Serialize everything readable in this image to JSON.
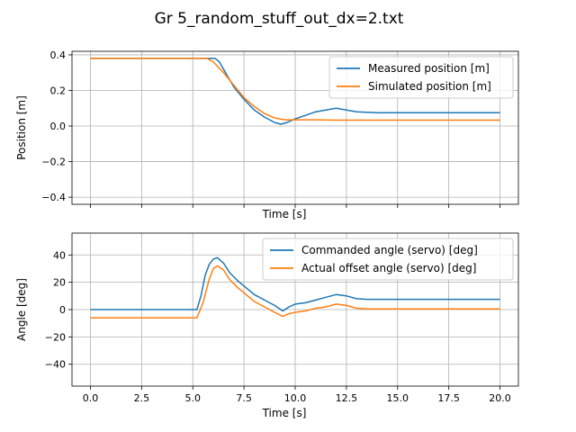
{
  "figure": {
    "title": "Gr 5_random_stuff_out_dx=2.txt"
  },
  "chart_data": [
    {
      "type": "line",
      "title": "",
      "xlabel": "Time [s]",
      "ylabel": "Position [m]",
      "xlim": [
        -0.9,
        20.9
      ],
      "ylim": [
        -0.44,
        0.42
      ],
      "xticks": [
        0,
        2.5,
        5,
        7.5,
        10,
        12.5,
        15,
        17.5,
        20
      ],
      "xtick_labels_visible": false,
      "yticks": [
        -0.4,
        -0.2,
        0.0,
        0.2,
        0.4
      ],
      "ytick_labels": [
        "−0.4",
        "−0.2",
        "0.0",
        "0.2",
        "0.4"
      ],
      "grid": true,
      "legend": "top-right",
      "series": [
        {
          "name": "Measured position [m]",
          "color": "#1f77b4",
          "x": [
            0,
            5.5,
            5.9,
            6.1,
            6.3,
            6.6,
            7.0,
            7.5,
            8.0,
            8.5,
            9.0,
            9.3,
            9.6,
            10.0,
            10.5,
            11.0,
            11.5,
            12.0,
            12.5,
            13.0,
            14.0,
            15.0,
            20.0
          ],
          "y": [
            0.38,
            0.38,
            0.38,
            0.38,
            0.36,
            0.3,
            0.22,
            0.15,
            0.09,
            0.05,
            0.02,
            0.01,
            0.02,
            0.04,
            0.06,
            0.08,
            0.09,
            0.1,
            0.09,
            0.08,
            0.075,
            0.075,
            0.075
          ]
        },
        {
          "name": "Simulated position [m]",
          "color": "#ff7f0e",
          "x": [
            0,
            5.7,
            6.0,
            6.5,
            7.0,
            7.5,
            8.0,
            8.5,
            9.0,
            9.5,
            10.0,
            11.0,
            12.0,
            20.0
          ],
          "y": [
            0.38,
            0.38,
            0.36,
            0.3,
            0.23,
            0.16,
            0.11,
            0.07,
            0.045,
            0.035,
            0.035,
            0.035,
            0.033,
            0.033
          ]
        }
      ]
    },
    {
      "type": "line",
      "title": "",
      "xlabel": "Time [s]",
      "ylabel": "Angle [deg]",
      "xlim": [
        -0.9,
        20.9
      ],
      "ylim": [
        -56,
        56
      ],
      "xticks": [
        0,
        2.5,
        5,
        7.5,
        10,
        12.5,
        15,
        17.5,
        20
      ],
      "xtick_labels": [
        "0.0",
        "2.5",
        "5.0",
        "7.5",
        "10.0",
        "12.5",
        "15.0",
        "17.5",
        "20.0"
      ],
      "yticks": [
        -40,
        -20,
        0,
        20,
        40
      ],
      "ytick_labels": [
        "−40",
        "−20",
        "0",
        "20",
        "40"
      ],
      "grid": true,
      "legend": "top-right",
      "series": [
        {
          "name": "Commanded angle (servo) [deg]",
          "color": "#1f77b4",
          "x": [
            0,
            5.2,
            5.4,
            5.6,
            5.8,
            6.0,
            6.2,
            6.5,
            6.8,
            7.2,
            7.6,
            8.0,
            8.5,
            9.0,
            9.4,
            9.7,
            10.0,
            10.5,
            11.0,
            11.5,
            12.0,
            12.5,
            13.0,
            13.5,
            14.0,
            15.0,
            20.0
          ],
          "y": [
            0,
            0,
            10,
            25,
            33,
            37,
            38,
            34,
            27,
            21,
            16,
            11,
            7,
            3,
            -1,
            2,
            4,
            5,
            7,
            9,
            11,
            10,
            8,
            7.5,
            7.5,
            7.5,
            7.5
          ]
        },
        {
          "name": "Actual offset angle (servo) [deg]",
          "color": "#ff7f0e",
          "x": [
            0,
            5.2,
            5.5,
            5.8,
            6.0,
            6.2,
            6.5,
            6.8,
            7.2,
            7.6,
            8.0,
            8.5,
            9.0,
            9.4,
            9.7,
            10.0,
            10.5,
            11.0,
            11.5,
            12.0,
            12.5,
            13.0,
            13.5,
            14.0,
            15.0,
            20.0
          ],
          "y": [
            -6,
            -6,
            5,
            22,
            30,
            32,
            29,
            22,
            16,
            11,
            6,
            2,
            -2,
            -5,
            -3,
            -2,
            -1,
            1,
            2,
            4,
            3,
            1,
            0.5,
            0.5,
            0.5,
            0.5
          ]
        }
      ]
    }
  ]
}
